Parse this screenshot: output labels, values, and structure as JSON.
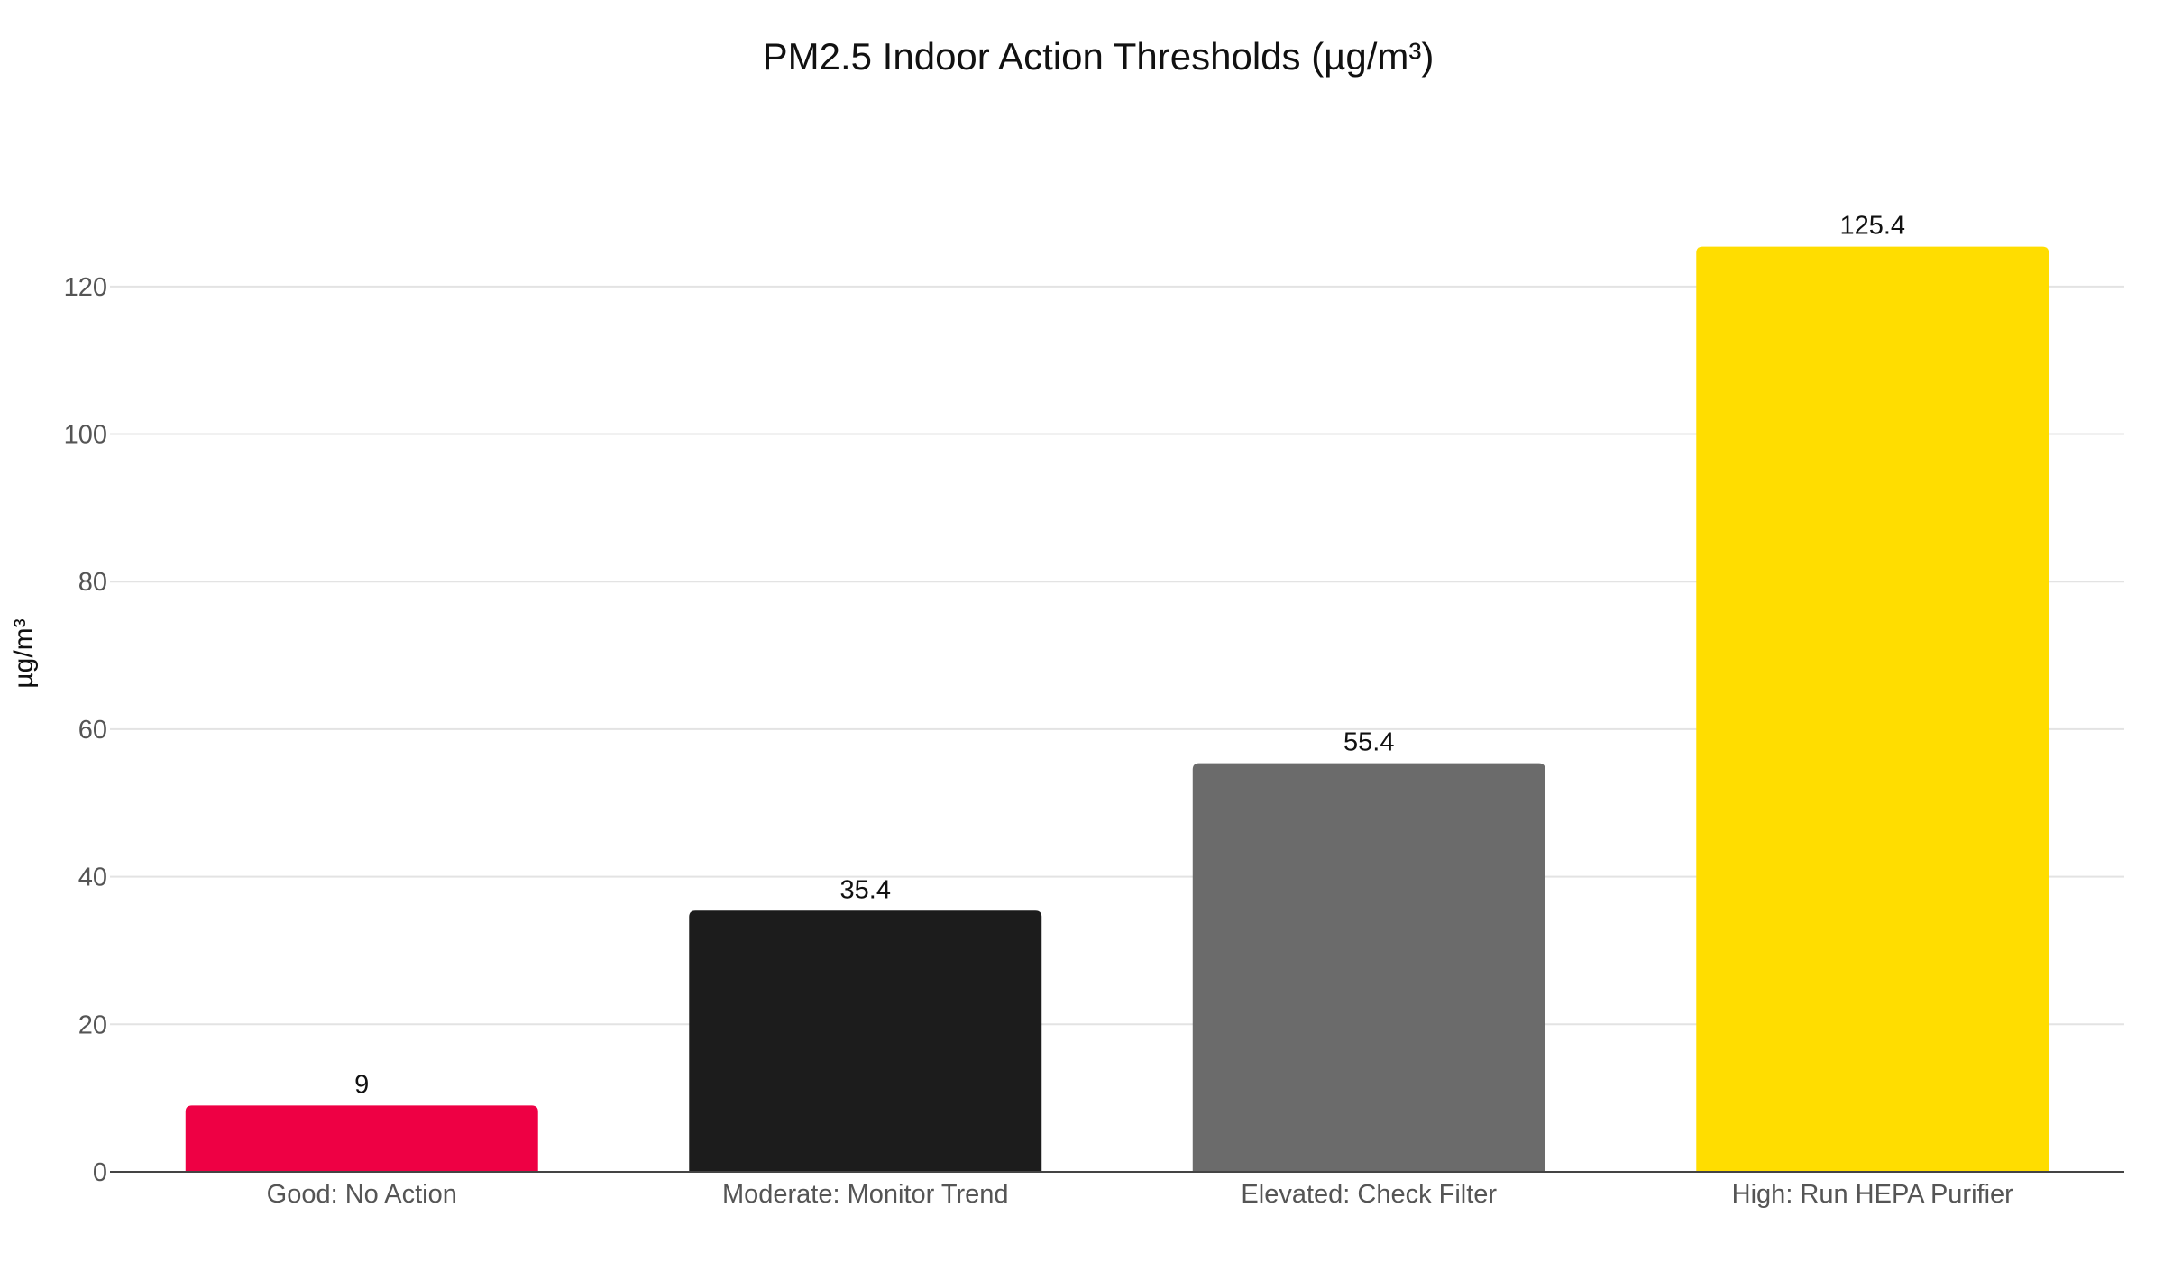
{
  "chart_data": {
    "type": "bar",
    "title": "PM2.5 Indoor Action Thresholds (µg/m³)",
    "xlabel": "",
    "ylabel": "µg/m³",
    "categories": [
      "Good: No Action",
      "Moderate: Monitor Trend",
      "Elevated: Check Filter",
      "High: Run HEPA Purifier"
    ],
    "values": [
      9,
      35.4,
      55.4,
      125.4
    ],
    "value_labels": [
      "9",
      "35.4",
      "55.4",
      "125.4"
    ],
    "colors": [
      "#EE0044",
      "#1C1C1C",
      "#6B6B6B",
      "#FFDD00"
    ],
    "ylim": [
      0,
      130
    ],
    "yticks": [
      0,
      20,
      40,
      60,
      80,
      100,
      120
    ],
    "grid": true,
    "legend": "none"
  }
}
